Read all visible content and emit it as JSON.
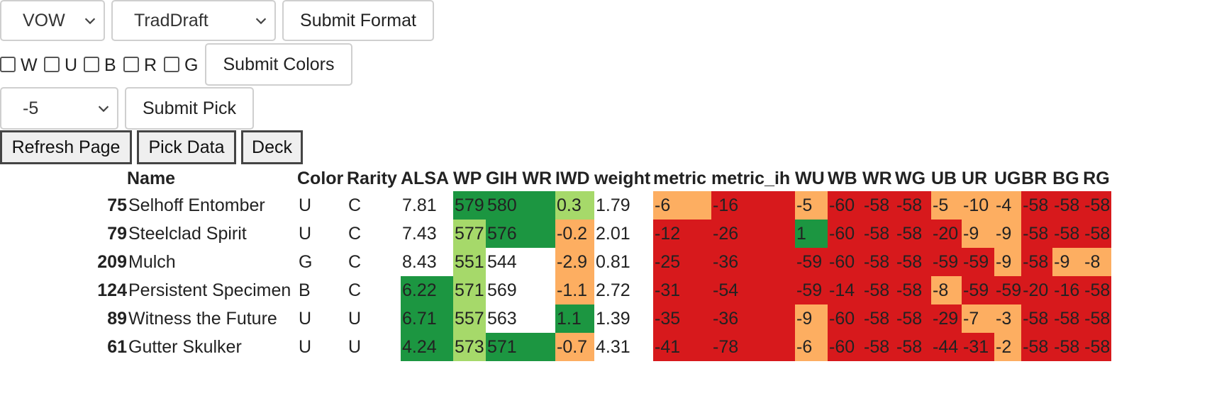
{
  "controls": {
    "format_select": "VOW",
    "draft_select": "TradDraft",
    "submit_format": "Submit Format",
    "colors": [
      {
        "label": "W"
      },
      {
        "label": "U"
      },
      {
        "label": "B"
      },
      {
        "label": "R"
      },
      {
        "label": "G"
      }
    ],
    "submit_colors": "Submit Colors",
    "pick_select": "-5",
    "submit_pick": "Submit Pick",
    "refresh_page": "Refresh Page",
    "pick_data": "Pick Data",
    "deck": "Deck"
  },
  "table": {
    "headers": [
      "",
      "Name",
      "Color",
      "Rarity",
      "ALSA",
      "WP",
      "GIH WR",
      "IWD",
      "weight",
      "metric",
      "metric_ih",
      "WU",
      "WB",
      "WR",
      "WG",
      "UB",
      "UR",
      "UG",
      "BR",
      "BG",
      "RG"
    ],
    "colors": {
      "dark_green": "#1c9641",
      "light_green": "#a6d96a",
      "orange": "#fdae61",
      "red": "#d7191c"
    },
    "rows": [
      {
        "idx": "75",
        "name": "Selhoff Entomber",
        "color": "U",
        "rarity": "C",
        "alsa": "7.81",
        "wp": "579",
        "gih": "580",
        "iwd": "0.3",
        "weight": "1.79",
        "metric": "-6",
        "metric_ih": "-16",
        "wu": "-5",
        "wb": "-60",
        "wr": "-58",
        "wg": "-58",
        "ub": "-5",
        "ur": "-10",
        "ug": "-4",
        "br": "-58",
        "bg": "-58",
        "rg": "-58",
        "fill": {
          "alsa": "",
          "wp": "dg",
          "gih": "dg",
          "iwd": "lg",
          "metric": "or",
          "metric_ih": "rd",
          "wu": "or",
          "wb": "rd",
          "wr": "rd",
          "wg": "rd",
          "ub": "or",
          "ur": "or",
          "ug": "or",
          "br": "rd",
          "bg": "rd",
          "rg": "rd"
        }
      },
      {
        "idx": "79",
        "name": "Steelclad Spirit",
        "color": "U",
        "rarity": "C",
        "alsa": "7.43",
        "wp": "577",
        "gih": "576",
        "iwd": "-0.2",
        "weight": "2.01",
        "metric": "-12",
        "metric_ih": "-26",
        "wu": "1",
        "wb": "-60",
        "wr": "-58",
        "wg": "-58",
        "ub": "-20",
        "ur": "-9",
        "ug": "-9",
        "br": "-58",
        "bg": "-58",
        "rg": "-58",
        "fill": {
          "alsa": "",
          "wp": "lg",
          "gih": "dg",
          "iwd": "or",
          "metric": "rd",
          "metric_ih": "rd",
          "wu": "dg",
          "wb": "rd",
          "wr": "rd",
          "wg": "rd",
          "ub": "rd",
          "ur": "or",
          "ug": "or",
          "br": "rd",
          "bg": "rd",
          "rg": "rd"
        }
      },
      {
        "idx": "209",
        "name": "Mulch",
        "color": "G",
        "rarity": "C",
        "alsa": "8.43",
        "wp": "551",
        "gih": "544",
        "iwd": "-2.9",
        "weight": "0.81",
        "metric": "-25",
        "metric_ih": "-36",
        "wu": "-59",
        "wb": "-60",
        "wr": "-58",
        "wg": "-58",
        "ub": "-59",
        "ur": "-59",
        "ug": "-9",
        "br": "-58",
        "bg": "-9",
        "rg": "-8",
        "fill": {
          "alsa": "",
          "wp": "lg",
          "gih": "",
          "iwd": "or",
          "metric": "rd",
          "metric_ih": "rd",
          "wu": "rd",
          "wb": "rd",
          "wr": "rd",
          "wg": "rd",
          "ub": "rd",
          "ur": "rd",
          "ug": "or",
          "br": "rd",
          "bg": "or",
          "rg": "or"
        }
      },
      {
        "idx": "124",
        "name": "Persistent Specimen",
        "color": "B",
        "rarity": "C",
        "alsa": "6.22",
        "wp": "571",
        "gih": "569",
        "iwd": "-1.1",
        "weight": "2.72",
        "metric": "-31",
        "metric_ih": "-54",
        "wu": "-59",
        "wb": "-14",
        "wr": "-58",
        "wg": "-58",
        "ub": "-8",
        "ur": "-59",
        "ug": "-59",
        "br": "-20",
        "bg": "-16",
        "rg": "-58",
        "fill": {
          "alsa": "dg",
          "wp": "lg",
          "gih": "",
          "iwd": "or",
          "metric": "rd",
          "metric_ih": "rd",
          "wu": "rd",
          "wb": "rd",
          "wr": "rd",
          "wg": "rd",
          "ub": "or",
          "ur": "rd",
          "ug": "rd",
          "br": "rd",
          "bg": "rd",
          "rg": "rd"
        }
      },
      {
        "idx": "89",
        "name": "Witness the Future",
        "color": "U",
        "rarity": "U",
        "alsa": "6.71",
        "wp": "557",
        "gih": "563",
        "iwd": "1.1",
        "weight": "1.39",
        "metric": "-35",
        "metric_ih": "-36",
        "wu": "-9",
        "wb": "-60",
        "wr": "-58",
        "wg": "-58",
        "ub": "-29",
        "ur": "-7",
        "ug": "-3",
        "br": "-58",
        "bg": "-58",
        "rg": "-58",
        "fill": {
          "alsa": "dg",
          "wp": "lg",
          "gih": "",
          "iwd": "dg",
          "metric": "rd",
          "metric_ih": "rd",
          "wu": "or",
          "wb": "rd",
          "wr": "rd",
          "wg": "rd",
          "ub": "rd",
          "ur": "or",
          "ug": "or",
          "br": "rd",
          "bg": "rd",
          "rg": "rd"
        }
      },
      {
        "idx": "61",
        "name": "Gutter Skulker",
        "color": "U",
        "rarity": "U",
        "alsa": "4.24",
        "wp": "573",
        "gih": "571",
        "iwd": "-0.7",
        "weight": "4.31",
        "metric": "-41",
        "metric_ih": "-78",
        "wu": "-6",
        "wb": "-60",
        "wr": "-58",
        "wg": "-58",
        "ub": "-44",
        "ur": "-31",
        "ug": "-2",
        "br": "-58",
        "bg": "-58",
        "rg": "-58",
        "fill": {
          "alsa": "dg",
          "wp": "lg",
          "gih": "dg",
          "iwd": "or",
          "metric": "rd",
          "metric_ih": "rd",
          "wu": "or",
          "wb": "rd",
          "wr": "rd",
          "wg": "rd",
          "ub": "rd",
          "ur": "rd",
          "ug": "or",
          "br": "rd",
          "bg": "rd",
          "rg": "rd"
        }
      }
    ]
  }
}
